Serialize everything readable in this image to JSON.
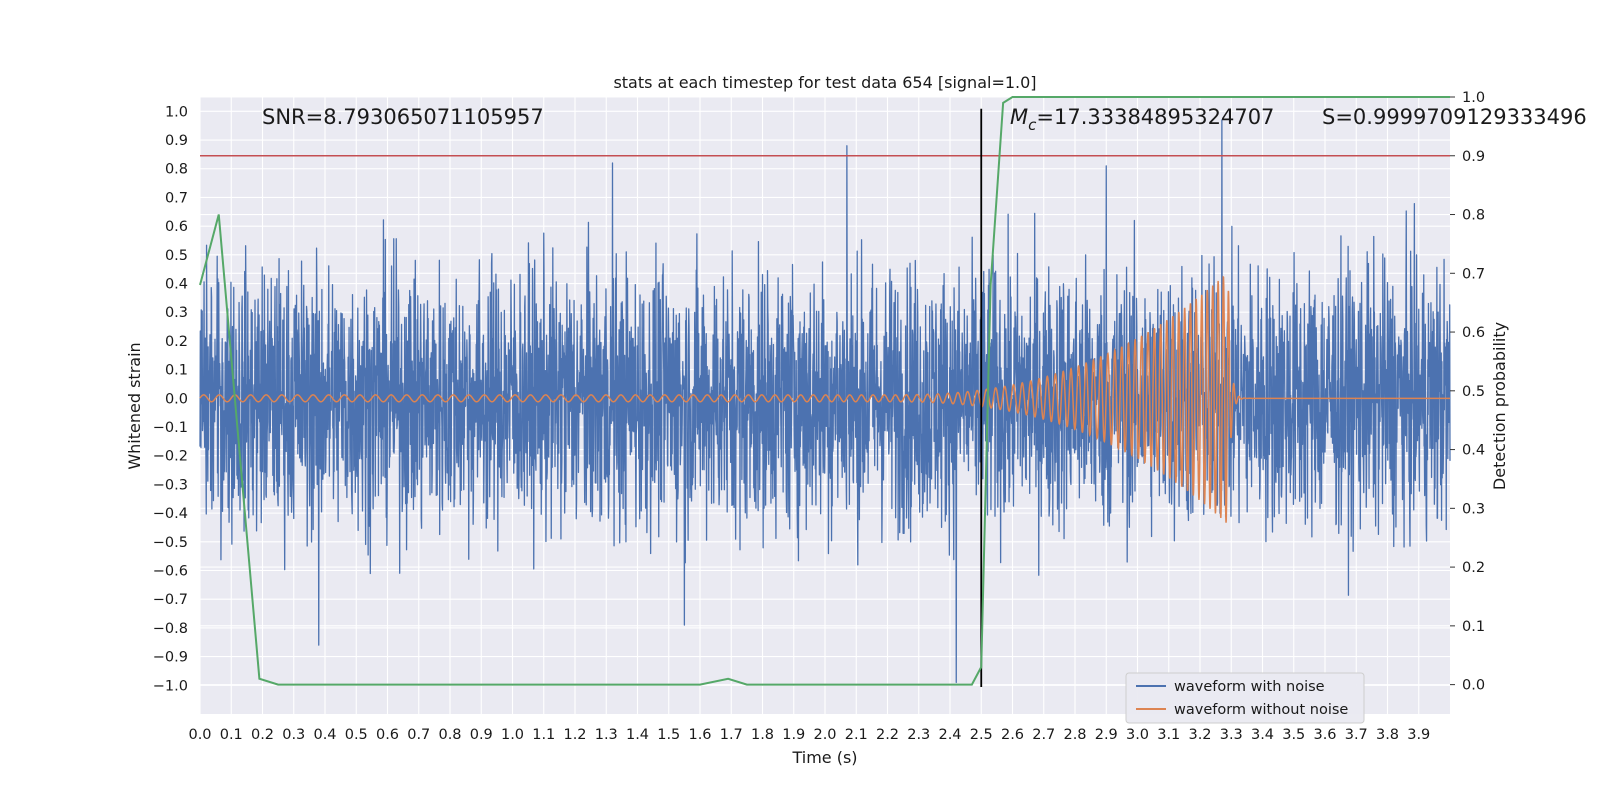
{
  "chart_data": {
    "type": "line",
    "title": "stats at each timestep for test data 654 [signal=1.0]",
    "xlabel": "Time (s)",
    "ylabel_left": "Whitened strain",
    "ylabel_right": "Detection probability",
    "xlim": [
      0.0,
      4.0
    ],
    "ylim_left": [
      -1.1,
      1.05
    ],
    "ylim_right": [
      -0.05,
      1.0
    ],
    "grid": true,
    "legend_position": "lower-right",
    "x_ticks": [
      "0.0",
      "0.1",
      "0.2",
      "0.3",
      "0.4",
      "0.5",
      "0.6",
      "0.7",
      "0.8",
      "0.9",
      "1.0",
      "1.1",
      "1.2",
      "1.3",
      "1.4",
      "1.5",
      "1.6",
      "1.7",
      "1.8",
      "1.9",
      "2.0",
      "2.1",
      "2.2",
      "2.3",
      "2.4",
      "2.5",
      "2.6",
      "2.7",
      "2.8",
      "2.9",
      "3.0",
      "3.1",
      "3.2",
      "3.3",
      "3.4",
      "3.5",
      "3.6",
      "3.7",
      "3.8",
      "3.9"
    ],
    "y_ticks_left": [
      "1.0",
      "0.9",
      "0.8",
      "0.7",
      "0.6",
      "0.5",
      "0.4",
      "0.3",
      "0.2",
      "0.1",
      "0.0",
      "−0.1",
      "−0.2",
      "−0.3",
      "−0.4",
      "−0.5",
      "−0.6",
      "−0.7",
      "−0.8",
      "−0.9",
      "−1.0"
    ],
    "y_ticks_right": [
      "1.0",
      "0.9",
      "0.8",
      "0.7",
      "0.6",
      "0.5",
      "0.4",
      "0.3",
      "0.2",
      "0.1",
      "0.0"
    ],
    "annotations": {
      "snr": "SNR=8.793065071105957",
      "mc_symbol": "M",
      "mc_sub": "c",
      "mc_value": "=17.33384895324707",
      "s": "S=0.9999709129333496"
    },
    "series": [
      {
        "name": "waveform with noise",
        "color": "#4c72b0",
        "axis": "left",
        "kind": "noise",
        "amplitude": 0.55,
        "x_range": [
          0.0,
          4.0
        ],
        "peaks": [
          [
            1.32,
            0.82
          ],
          [
            2.07,
            0.88
          ],
          [
            2.9,
            0.81
          ],
          [
            3.27,
            0.97
          ],
          [
            0.38,
            -0.86
          ],
          [
            2.42,
            -0.99
          ],
          [
            1.55,
            -0.79
          ]
        ]
      },
      {
        "name": "waveform without noise",
        "color": "#dd8452",
        "axis": "left",
        "kind": "chirp",
        "start_amplitude": 0.012,
        "peak_amplitude": 0.44,
        "merger_time": 3.29,
        "start_freq_hz": 20,
        "end_freq_hz": 60
      },
      {
        "color": "#55a868",
        "axis": "right",
        "points": [
          [
            0.0,
            0.68
          ],
          [
            0.06,
            0.8
          ],
          [
            0.19,
            0.01
          ],
          [
            0.25,
            0.0
          ],
          [
            1.6,
            0.0
          ],
          [
            1.69,
            0.01
          ],
          [
            1.75,
            0.0
          ],
          [
            2.47,
            0.0
          ],
          [
            2.5,
            0.03
          ],
          [
            2.53,
            0.68
          ],
          [
            2.57,
            0.99
          ],
          [
            2.6,
            1.0
          ],
          [
            4.0,
            1.0
          ]
        ]
      }
    ],
    "reference_lines": [
      {
        "orientation": "horizontal",
        "axis": "right",
        "value": 0.9,
        "color": "#c44e52"
      },
      {
        "orientation": "vertical",
        "value": 2.5,
        "color": "#000000"
      }
    ]
  }
}
